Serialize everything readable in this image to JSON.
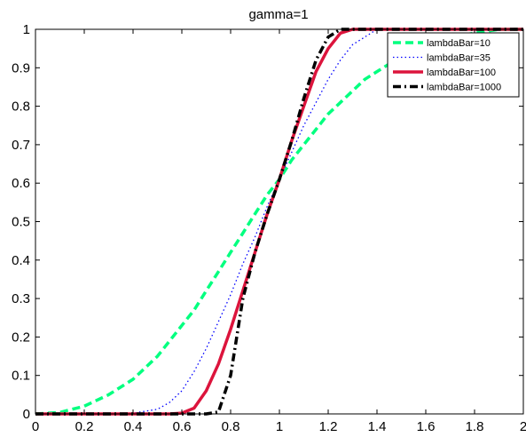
{
  "chart_data": {
    "type": "line",
    "title": "gamma=1",
    "xlabel": "",
    "ylabel": "",
    "xlim": [
      0,
      2
    ],
    "ylim": [
      0,
      1
    ],
    "x_ticks": [
      0,
      0.2,
      0.4,
      0.6,
      0.8,
      1,
      1.2,
      1.4,
      1.6,
      1.8,
      2
    ],
    "x_tick_labels": [
      "0",
      "0.2",
      "0.4",
      "0.6",
      "0.8",
      "1",
      "1.2",
      "1.4",
      "1.6",
      "1.8",
      "2"
    ],
    "y_ticks": [
      0,
      0.1,
      0.2,
      0.3,
      0.4,
      0.5,
      0.6,
      0.7,
      0.8,
      0.9,
      1
    ],
    "y_tick_labels": [
      "0",
      "0.1",
      "0.2",
      "0.3",
      "0.4",
      "0.5",
      "0.6",
      "0.7",
      "0.8",
      "0.9",
      "1"
    ],
    "grid": false,
    "legend_position": "top-right",
    "x": [
      0,
      0.1,
      0.2,
      0.3,
      0.4,
      0.5,
      0.55,
      0.6,
      0.65,
      0.7,
      0.75,
      0.8,
      0.85,
      0.9,
      0.95,
      1.0,
      1.05,
      1.1,
      1.15,
      1.2,
      1.25,
      1.3,
      1.35,
      1.4,
      1.45,
      1.5,
      1.6,
      1.7,
      1.8,
      1.9,
      2.0
    ],
    "series": [
      {
        "name": "lambdaBar=10",
        "color": "#00ff7f",
        "style": "dashed",
        "values": [
          0,
          0.004,
          0.02,
          0.05,
          0.09,
          0.15,
          0.19,
          0.23,
          0.27,
          0.32,
          0.37,
          0.42,
          0.47,
          0.52,
          0.57,
          0.61,
          0.66,
          0.7,
          0.74,
          0.78,
          0.81,
          0.84,
          0.87,
          0.89,
          0.91,
          0.93,
          0.96,
          0.98,
          0.99,
          1.0,
          1.0
        ]
      },
      {
        "name": "lambdaBar=35",
        "color": "#0000ff",
        "style": "dotted",
        "values": [
          0,
          0,
          0,
          0,
          0.002,
          0.012,
          0.03,
          0.06,
          0.11,
          0.17,
          0.24,
          0.31,
          0.39,
          0.46,
          0.54,
          0.61,
          0.68,
          0.75,
          0.81,
          0.87,
          0.92,
          0.96,
          0.98,
          1.0,
          1.0,
          1.0,
          1.0,
          1.0,
          1.0,
          1.0,
          1.0
        ]
      },
      {
        "name": "lambdaBar=100",
        "color": "#dc143c",
        "style": "solid",
        "values": [
          0,
          0,
          0,
          0,
          0,
          0,
          0,
          0.002,
          0.015,
          0.06,
          0.13,
          0.22,
          0.32,
          0.42,
          0.52,
          0.61,
          0.71,
          0.8,
          0.89,
          0.95,
          0.99,
          1.0,
          1.0,
          1.0,
          1.0,
          1.0,
          1.0,
          1.0,
          1.0,
          1.0,
          1.0
        ]
      },
      {
        "name": "lambdaBar=1000",
        "color": "#000000",
        "style": "dashdot",
        "values": [
          0,
          0,
          0,
          0,
          0,
          0,
          0,
          0,
          0,
          0,
          0.005,
          0.1,
          0.3,
          0.42,
          0.52,
          0.61,
          0.71,
          0.82,
          0.92,
          0.98,
          1.0,
          1.0,
          1.0,
          1.0,
          1.0,
          1.0,
          1.0,
          1.0,
          1.0,
          1.0,
          1.0
        ]
      }
    ]
  }
}
